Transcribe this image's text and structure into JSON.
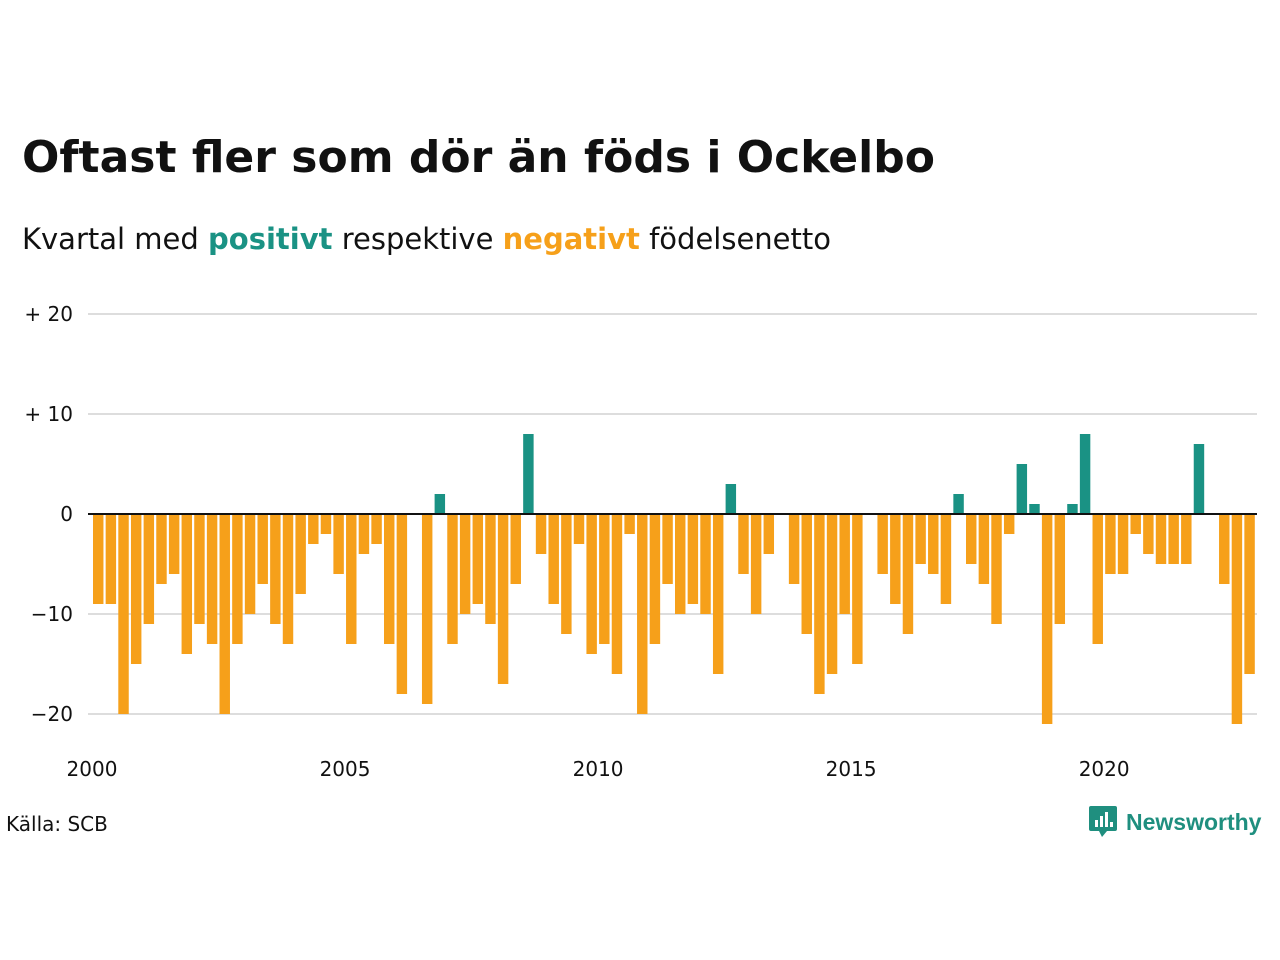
{
  "title": "Oftast fler som dör än föds i Ockelbo",
  "subtitle": {
    "part1": "Kvartal med ",
    "positive_word": "positivt",
    "part2": " respektive ",
    "negative_word": "negativt",
    "part3": " födelsenetto"
  },
  "source": "Källa: SCB",
  "brand": "Newsworthy",
  "colors": {
    "positive": "#1a9284",
    "negative": "#f6a01a",
    "grid": "#dddddd",
    "brand": "#1f8f7f"
  },
  "chart_data": {
    "type": "bar",
    "title": "Oftast fler som dör än föds i Ockelbo",
    "xlabel": "",
    "ylabel": "",
    "grid": true,
    "ylim": [
      -22,
      20
    ],
    "y_ticks": [
      {
        "value": 20,
        "label": "+ 20"
      },
      {
        "value": 10,
        "label": "+ 10"
      },
      {
        "value": 0,
        "label": "0"
      },
      {
        "value": -10,
        "label": "−10"
      },
      {
        "value": -20,
        "label": "−20"
      }
    ],
    "x_ticks": [
      "2000",
      "2005",
      "2010",
      "2015",
      "2020"
    ],
    "x_range": [
      2000,
      2023
    ],
    "categories": [
      "2000Q1",
      "2000Q2",
      "2000Q3",
      "2000Q4",
      "2001Q1",
      "2001Q2",
      "2001Q3",
      "2001Q4",
      "2002Q1",
      "2002Q2",
      "2002Q3",
      "2002Q4",
      "2003Q1",
      "2003Q2",
      "2003Q3",
      "2003Q4",
      "2004Q1",
      "2004Q2",
      "2004Q3",
      "2004Q4",
      "2005Q1",
      "2005Q2",
      "2005Q3",
      "2005Q4",
      "2006Q1",
      "2006Q2",
      "2006Q3",
      "2006Q4",
      "2007Q1",
      "2007Q2",
      "2007Q3",
      "2007Q4",
      "2008Q1",
      "2008Q2",
      "2008Q3",
      "2008Q4",
      "2009Q1",
      "2009Q2",
      "2009Q3",
      "2009Q4",
      "2010Q1",
      "2010Q2",
      "2010Q3",
      "2010Q4",
      "2011Q1",
      "2011Q2",
      "2011Q3",
      "2011Q4",
      "2012Q1",
      "2012Q2",
      "2012Q3",
      "2012Q4",
      "2013Q1",
      "2013Q2",
      "2013Q3",
      "2013Q4",
      "2014Q1",
      "2014Q2",
      "2014Q3",
      "2014Q4",
      "2015Q1",
      "2015Q2",
      "2015Q3",
      "2015Q4",
      "2016Q1",
      "2016Q2",
      "2016Q3",
      "2016Q4",
      "2017Q1",
      "2017Q2",
      "2017Q3",
      "2017Q4",
      "2018Q1",
      "2018Q2",
      "2018Q3",
      "2018Q4",
      "2019Q1",
      "2019Q2",
      "2019Q3",
      "2019Q4",
      "2020Q1",
      "2020Q2",
      "2020Q3",
      "2020Q4",
      "2021Q1",
      "2021Q2",
      "2021Q3",
      "2021Q4",
      "2022Q1",
      "2022Q2",
      "2022Q3",
      "2022Q4"
    ],
    "values": [
      -9,
      -9,
      -20,
      -15,
      -11,
      -7,
      -6,
      -14,
      -11,
      -13,
      -20,
      -13,
      -10,
      -7,
      -11,
      -13,
      -8,
      -3,
      -2,
      -6,
      -13,
      -4,
      -3,
      -13,
      -18,
      0,
      -19,
      2,
      -13,
      -10,
      -9,
      -11,
      -17,
      -7,
      8,
      -4,
      -9,
      -12,
      -3,
      -14,
      -13,
      -16,
      -2,
      -20,
      -13,
      -7,
      -10,
      -9,
      -10,
      -16,
      3,
      -6,
      -10,
      -4,
      0,
      -7,
      -12,
      -18,
      -16,
      -10,
      -15,
      0,
      -6,
      -9,
      -12,
      -5,
      -6,
      -9,
      2,
      -5,
      -7,
      -11,
      -2,
      5,
      1,
      -21,
      -11,
      1,
      8,
      -13,
      -6,
      -6,
      -2,
      -4,
      -5,
      -5,
      -5,
      7,
      0,
      -7,
      -21,
      -16
    ]
  }
}
